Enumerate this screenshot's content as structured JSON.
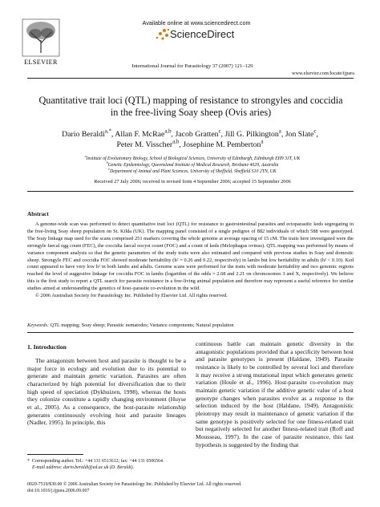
{
  "header": {
    "publisher": "ELSEVIER",
    "available": "Available online at www.sciencedirect.com",
    "brand": "ScienceDirect",
    "journal": "International Journal for Parasitology 37 (2007) 121–129",
    "url": "www.elsevier.com/locate/ijpara"
  },
  "title": "Quantitative trait loci (QTL) mapping of resistance to strongyles and coccidia in the free-living Soay sheep (Ovis aries)",
  "authors": [
    {
      "name": "Dario Beraldi",
      "sup": "a,*"
    },
    {
      "name": "Allan F. McRae",
      "sup": "a,b"
    },
    {
      "name": "Jacob Gratten",
      "sup": "c"
    },
    {
      "name": "Jill G. Pilkington",
      "sup": "a"
    },
    {
      "name": "Jon Slate",
      "sup": "c"
    },
    {
      "name": "Peter M. Visscher",
      "sup": "a,b"
    },
    {
      "name": "Josephine M. Pemberton",
      "sup": "a"
    }
  ],
  "affiliations": [
    {
      "mark": "a",
      "text": "Institute of Evolutionary Biology, School of Biological Sciences, University of Edinburgh, Edinburgh EH9 3JT, UK"
    },
    {
      "mark": "b",
      "text": "Genetic Epidemiology, Queensland Institute of Medical Research, Brisbane 4029, Australia"
    },
    {
      "mark": "c",
      "text": "Department of Animal and Plant Sciences, University of Sheffield, Sheffield S10 2TN, UK"
    }
  ],
  "dates": "Received 27 July 2006; received in revised form 4 September 2006; accepted 15 September 2006",
  "abstract": {
    "heading": "Abstract",
    "text": "A genome-wide scan was performed to detect quantitative trait loci (QTL) for resistance to gastrointestinal parasites and ectoparasitic keds segregating in the free-living Soay sheep population on St. Kilda (UK). The mapping panel consisted of a single pedigree of 882 individuals of which 588 were genotyped. The Soay linkage map used for the scans comprised 251 markers covering the whole genome at average spacing of 15 cM. The traits here investigated were the strongyle faecal egg count (FEC), the coccidia faecal oocyst count (FOC) and a count of keds (Melophagus ovinus). QTL mapping was performed by means of variance component analysis so that the genetic parameters of the study traits were also estimated and compared with previous studies in Soay and domestic sheep. Strongyle FEC and coccidia FOC showed moderate heritability (h² = 0.26 and 0.22, respectively) in lambs but low heritability in adults (h² < 0.10). Ked count appeared to have very low h² in both lambs and adults. Genome scans were performed for the traits with moderate heritability and two genomic regions reached the level of suggestive linkage for coccidia FOC in lambs (logarithm of the odds = 2.68 and 2.21 on chromosomes 3 and X, respectively). We believe this is the first study to report a QTL search for parasite resistance in a free-living animal population and therefore may represent a useful reference for similar studies aimed at understanding the genetics of host–parasite co-evolution in the wild.",
    "copyright": "© 2006 Australian Society for Parasitology Inc. Published by Elsevier Ltd. All rights reserved."
  },
  "keywords": {
    "label": "Keywords:",
    "text": "QTL mapping; Soay sheep; Parasitic nematodes; Variance components; Natural population"
  },
  "intro": {
    "heading": "1. Introduction",
    "left": "The antagonism between host and parasite is thought to be a major force in ecology and evolution due to its potential to generate and maintain genetic variation. Parasites are often characterized by high potential for diversification due to their high speed of speciation (Dykhuizen, 1998), whereas the hosts they colonize constitute a rapidly changing environment (Huyse et al., 2005). As a consequence, the host-parasite relationship generates continuously evolving host and parasite lineages (Nadler, 1995). In principle, this",
    "right": "continuous battle can maintain genetic diversity in the antagonistic populations provided that a specificity between host and parasite genotypes is present (Haldane, 1949). Parasite resistance is likely to be controlled by several loci and therefore it may receive a strong mutational input which generates genetic variation (Houle et al., 1996). Host-parasite co-evolution may maintain genetic variation if the additive genetic value of a host genotype changes when parasites evolve as a response to the selection induced by the host (Haldane, 1949). Antagonistic pleiotropy may result in maintenance of genetic variation if the same genotype is positively selected for one fitness-related trait but negatively selected for another fitness-related trait (Roff and Mousseau, 1997). In the case of parasite resistance, this last hypothesis is suggested by the finding that"
  },
  "footnote": {
    "mark": "*",
    "lines": [
      "Corresponding author. Tel.: +44 131 6513612; fax: +44 131 6506564.",
      "E-mail address: dario.beraldi@ed.ac.uk (D. Beraldi)."
    ]
  },
  "footer": [
    "0020-7519/$30.00 © 2006 Australian Society for Parasitology Inc. Published by Elsevier Ltd. All rights reserved.",
    "doi:10.1016/j.ijpara.2006.09.007"
  ]
}
